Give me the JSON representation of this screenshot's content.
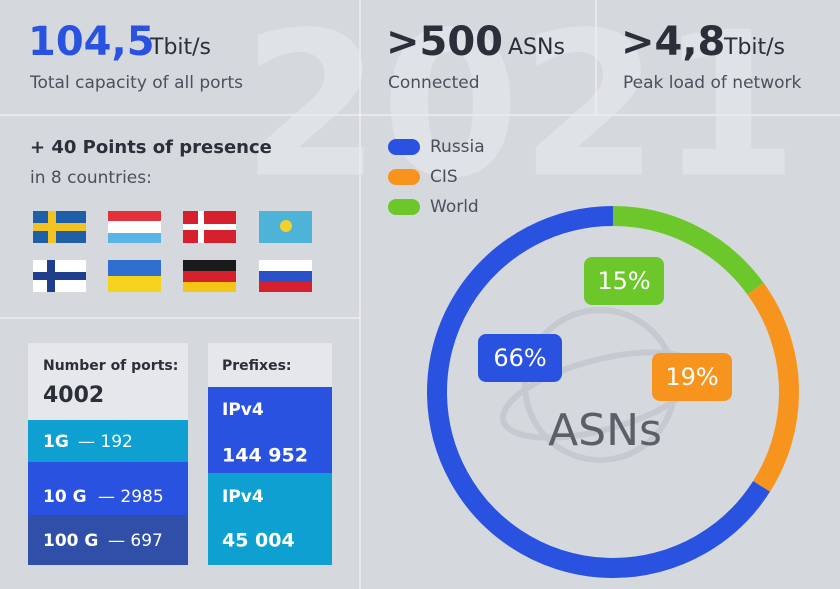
{
  "watermark": "2021",
  "stats": [
    {
      "value": "104,5",
      "unit": "Tbit/s",
      "caption": "Total capacity of all ports"
    },
    {
      "value": ">500",
      "unit": "ASNs",
      "caption": "Connected"
    },
    {
      "value": ">4,8",
      "unit": "Tbit/s",
      "caption": "Peak load of network"
    }
  ],
  "presence": {
    "title": "+ 40 Points of presence",
    "subtitle": "in 8 countries:"
  },
  "ports": {
    "title": "Number of ports:",
    "total": "4002",
    "rows": [
      {
        "speed": "1G",
        "count": "— 192"
      },
      {
        "speed": "10 G",
        "count": "— 2985"
      },
      {
        "speed": "100 G",
        "count": "— 697"
      }
    ]
  },
  "prefixes": {
    "title": "Prefixes:",
    "rows": [
      {
        "label": "IPv4",
        "count": "144 952"
      },
      {
        "label": "IPv4",
        "count": "45 004"
      }
    ]
  },
  "chart_data": {
    "type": "donut",
    "center_label": "ASNs",
    "categories": [
      "Russia",
      "CIS",
      "World"
    ],
    "values": [
      66,
      19,
      15
    ],
    "value_labels": [
      "66%",
      "19%",
      "15%"
    ],
    "colors": [
      "#2a52e0",
      "#f7941d",
      "#6cc72b"
    ]
  }
}
